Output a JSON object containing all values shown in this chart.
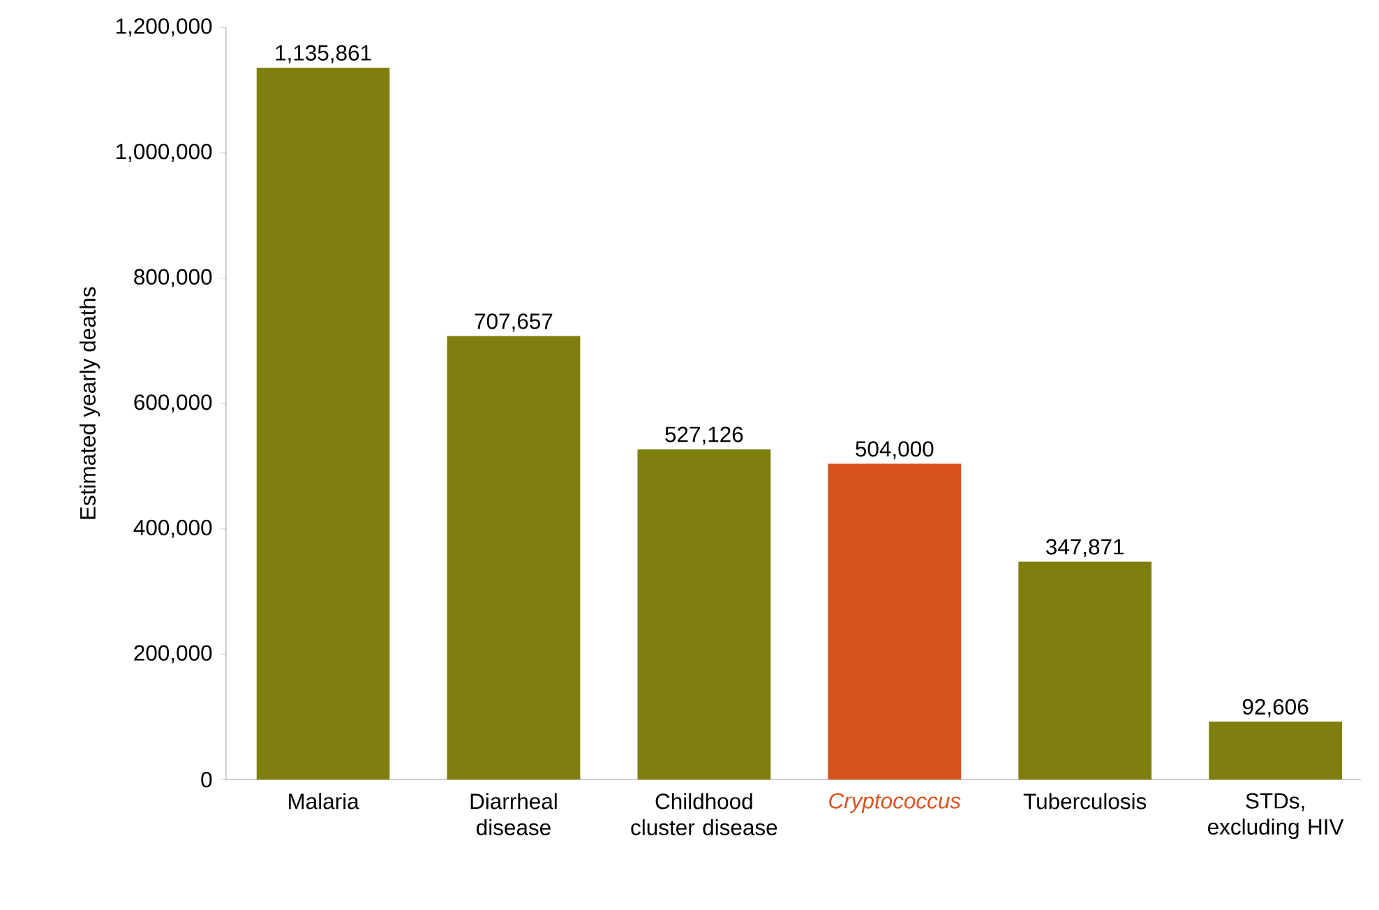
{
  "chart_data": {
    "type": "bar",
    "ylabel": "Estimated yearly deaths",
    "categories": [
      "Malaria",
      "Diarrheal disease",
      "Childhood cluster disease",
      "Cryptococcus",
      "Tuberculosis",
      "STDs, excluding HIV"
    ],
    "values": [
      1135861,
      707657,
      527126,
      504000,
      347871,
      92606
    ],
    "colors": [
      "#7f7f0f",
      "#7f7f0f",
      "#7f7f0f",
      "#d9531e",
      "#7f7f0f",
      "#7f7f0f"
    ],
    "ylim": [
      0,
      1200000
    ],
    "yticks": [
      {
        "value": 0,
        "label": "0"
      },
      {
        "value": 200000,
        "label": "200,000"
      },
      {
        "value": 400000,
        "label": "400,000"
      },
      {
        "value": 600000,
        "label": "600,000"
      },
      {
        "value": 800000,
        "label": "800,000"
      },
      {
        "value": 1000000,
        "label": "1,000,000"
      },
      {
        "value": 1200000,
        "label": "1,200,000"
      }
    ],
    "value_labels": [
      "1,135,861",
      "707,657",
      "527,126",
      "504,000",
      "347,871",
      "92,606"
    ],
    "grid": false
  }
}
